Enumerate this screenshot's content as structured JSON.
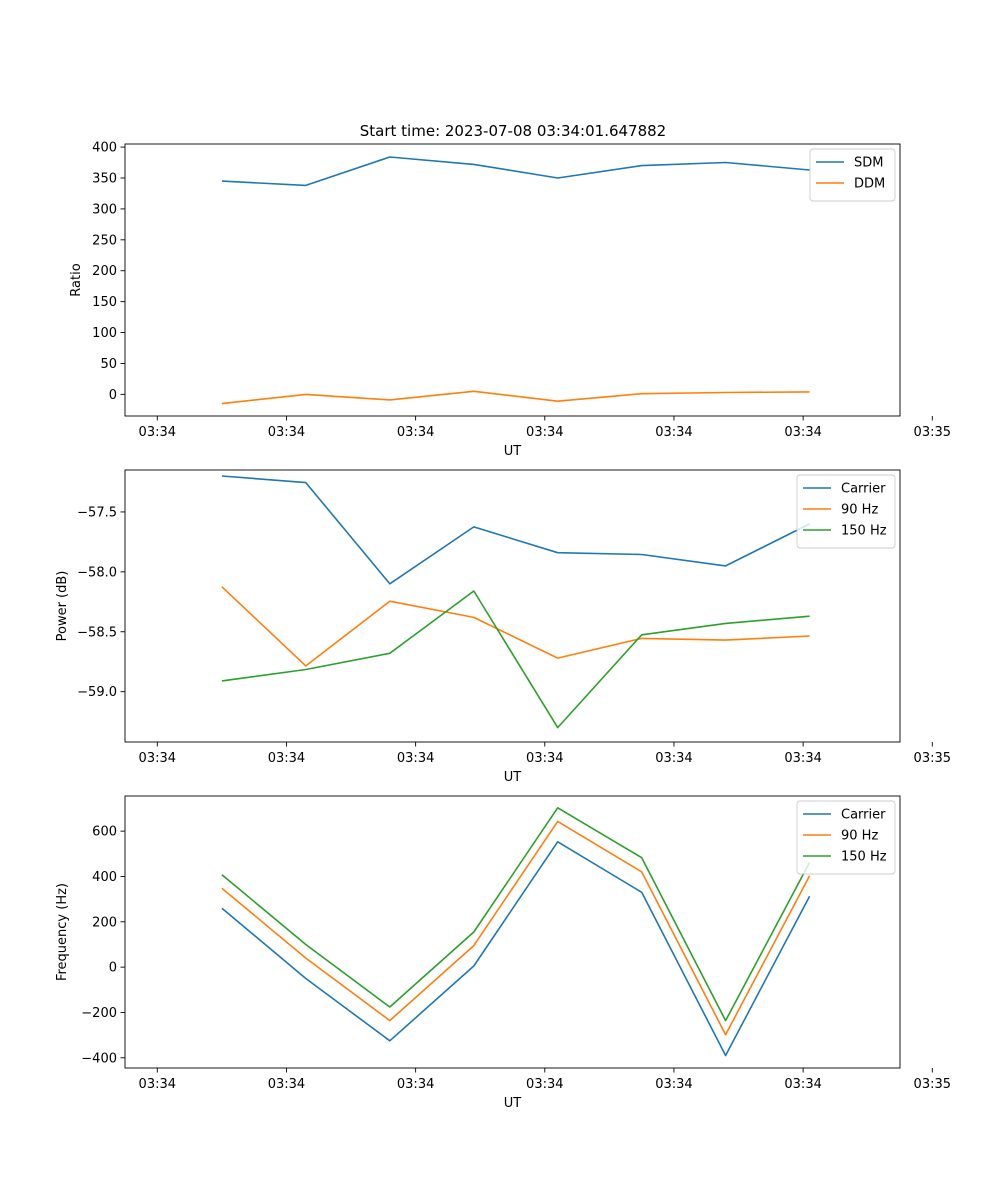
{
  "figure_title": "Start time: 2023-07-08 03:34:01.647882",
  "colors": {
    "c0": "#1f77b4",
    "c1": "#ff7f0e",
    "c2": "#2ca02c"
  },
  "chart_data": [
    {
      "type": "line",
      "title": "Start time: 2023-07-08 03:34:01.647882",
      "xlabel": "UT",
      "ylabel": "Ratio",
      "x": [
        0.5,
        1.15,
        1.8,
        2.45,
        3.1,
        3.75,
        4.4,
        5.05
      ],
      "xlim": [
        -0.25,
        5.75
      ],
      "xticks": [
        0,
        1,
        2,
        3,
        4,
        5,
        6
      ],
      "xtick_labels": [
        "03:34",
        "03:34",
        "03:34",
        "03:34",
        "03:34",
        "03:34",
        "03:35"
      ],
      "ylim": [
        -35,
        405
      ],
      "yticks": [
        0,
        50,
        100,
        150,
        200,
        250,
        300,
        350,
        400
      ],
      "ytick_labels": [
        "0",
        "50",
        "100",
        "150",
        "200",
        "250",
        "300",
        "350",
        "400"
      ],
      "legend": "top-right",
      "series": [
        {
          "name": "SDM",
          "color": "#1f77b4",
          "values": [
            345,
            338,
            384,
            372,
            350,
            370,
            375,
            363
          ]
        },
        {
          "name": "DDM",
          "color": "#ff7f0e",
          "values": [
            -15,
            0,
            -9,
            5,
            -11,
            1,
            3,
            4
          ]
        }
      ]
    },
    {
      "type": "line",
      "title": "",
      "xlabel": "UT",
      "ylabel": "Power (dB)",
      "x": [
        0.5,
        1.15,
        1.8,
        2.45,
        3.1,
        3.75,
        4.4,
        5.05
      ],
      "xlim": [
        -0.25,
        5.75
      ],
      "xticks": [
        0,
        1,
        2,
        3,
        4,
        5,
        6
      ],
      "xtick_labels": [
        "03:34",
        "03:34",
        "03:34",
        "03:34",
        "03:34",
        "03:34",
        "03:35"
      ],
      "ylim": [
        -59.42,
        -57.15
      ],
      "yticks": [
        -59.0,
        -58.5,
        -58.0,
        -57.5
      ],
      "ytick_labels": [
        "−59.0",
        "−58.5",
        "−58.0",
        "−57.5"
      ],
      "legend": "top-right",
      "series": [
        {
          "name": "Carrier",
          "color": "#1f77b4",
          "values": [
            -57.2,
            -57.255,
            -58.1,
            -57.625,
            -57.84,
            -57.855,
            -57.95,
            -57.6
          ]
        },
        {
          "name": "90 Hz",
          "color": "#ff7f0e",
          "values": [
            -58.125,
            -58.785,
            -58.245,
            -58.38,
            -58.72,
            -58.555,
            -58.57,
            -58.535
          ]
        },
        {
          "name": "150 Hz",
          "color": "#2ca02c",
          "values": [
            -58.91,
            -58.815,
            -58.68,
            -58.16,
            -59.3,
            -58.525,
            -58.43,
            -58.37
          ]
        }
      ]
    },
    {
      "type": "line",
      "title": "",
      "xlabel": "UT",
      "ylabel": "Frequency (Hz)",
      "x": [
        0.5,
        1.15,
        1.8,
        2.45,
        3.1,
        3.75,
        4.4,
        5.05
      ],
      "xlim": [
        -0.25,
        5.75
      ],
      "xticks": [
        0,
        1,
        2,
        3,
        4,
        5,
        6
      ],
      "xtick_labels": [
        "03:34",
        "03:34",
        "03:34",
        "03:34",
        "03:34",
        "03:34",
        "03:35"
      ],
      "ylim": [
        -445,
        755
      ],
      "yticks": [
        -400,
        -200,
        0,
        200,
        400,
        600
      ],
      "ytick_labels": [
        "−400",
        "−200",
        "0",
        "200",
        "400",
        "600"
      ],
      "legend": "top-right",
      "series": [
        {
          "name": "Carrier",
          "color": "#1f77b4",
          "values": [
            260,
            -50,
            -325,
            5,
            553,
            330,
            -390,
            313
          ]
        },
        {
          "name": "90 Hz",
          "color": "#ff7f0e",
          "values": [
            348,
            40,
            -236,
            95,
            643,
            420,
            -298,
            403
          ]
        },
        {
          "name": "150 Hz",
          "color": "#2ca02c",
          "values": [
            408,
            100,
            -176,
            155,
            703,
            483,
            -236,
            462
          ]
        }
      ]
    }
  ]
}
